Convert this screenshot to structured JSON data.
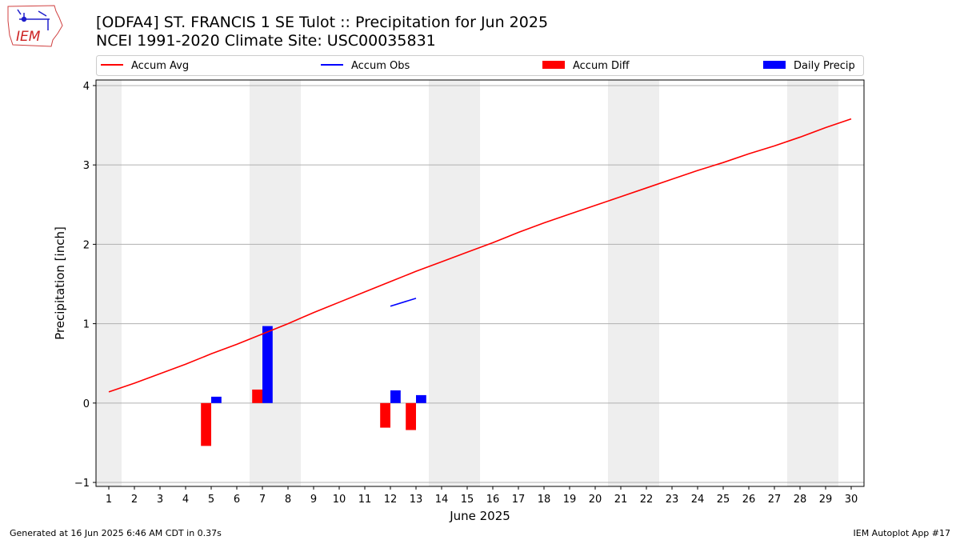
{
  "header": {
    "title_line1": "[ODFA4] ST. FRANCIS 1 SE Tulot :: Precipitation for Jun 2025",
    "title_line2": "NCEI 1991-2020 Climate Site: USC00035831",
    "logo_text": "IEM"
  },
  "footer": {
    "generated": "Generated at 16 Jun 2025 6:46 AM CDT in 0.37s",
    "app": "IEM Autoplot App #17"
  },
  "chart_data": {
    "type": "bar",
    "xlabel": "June 2025",
    "ylabel": "Precipitation [inch]",
    "xlim": [
      0.5,
      30.5
    ],
    "ylim": [
      -1.05,
      4.07
    ],
    "yticks": [
      -1,
      0,
      1,
      2,
      3,
      4
    ],
    "ytick_labels": [
      "−1",
      "0",
      "1",
      "2",
      "3",
      "4"
    ],
    "xticks": [
      1,
      2,
      3,
      4,
      5,
      6,
      7,
      8,
      9,
      10,
      11,
      12,
      13,
      14,
      15,
      16,
      17,
      18,
      19,
      20,
      21,
      22,
      23,
      24,
      25,
      26,
      27,
      28,
      29,
      30
    ],
    "xtick_labels": [
      "1",
      "2",
      "3",
      "4",
      "5",
      "6",
      "7",
      "8",
      "9",
      "10",
      "11",
      "12",
      "13",
      "14",
      "15",
      "16",
      "17",
      "18",
      "19",
      "20",
      "21",
      "22",
      "23",
      "24",
      "25",
      "26",
      "27",
      "28",
      "29",
      "30"
    ],
    "grid": "horizontal",
    "legend_position": "top",
    "weekend_shading": [
      [
        0.5,
        1.5
      ],
      [
        6.5,
        8.5
      ],
      [
        13.5,
        15.5
      ],
      [
        20.5,
        22.5
      ],
      [
        27.5,
        29.5
      ]
    ],
    "shade_color": "#eeeeee",
    "series": [
      {
        "name": "Accum Avg",
        "kind": "line",
        "color": "#ff0000",
        "x": [
          1,
          2,
          3,
          4,
          5,
          6,
          7,
          8,
          9,
          10,
          11,
          12,
          13,
          14,
          15,
          16,
          17,
          18,
          19,
          20,
          21,
          22,
          23,
          24,
          25,
          26,
          27,
          28,
          29,
          30
        ],
        "y": [
          0.14,
          0.25,
          0.37,
          0.49,
          0.62,
          0.74,
          0.87,
          1.0,
          1.14,
          1.27,
          1.4,
          1.53,
          1.66,
          1.78,
          1.9,
          2.02,
          2.15,
          2.27,
          2.38,
          2.49,
          2.6,
          2.71,
          2.82,
          2.93,
          3.03,
          3.14,
          3.24,
          3.35,
          3.47,
          3.58
        ]
      },
      {
        "name": "Accum Obs",
        "kind": "line",
        "color": "#0000ff",
        "x": [
          12,
          13
        ],
        "y": [
          1.22,
          1.32
        ]
      },
      {
        "name": "Accum Diff",
        "kind": "bar",
        "color": "#ff0000",
        "offset": -0.2,
        "x": [
          5,
          7,
          12,
          13
        ],
        "y": [
          -0.54,
          0.17,
          -0.31,
          -0.34
        ]
      },
      {
        "name": "Daily Precip",
        "kind": "bar",
        "color": "#0000ff",
        "offset": 0.2,
        "x": [
          5,
          7,
          12,
          13
        ],
        "y": [
          0.08,
          0.97,
          0.16,
          0.1
        ]
      }
    ]
  }
}
